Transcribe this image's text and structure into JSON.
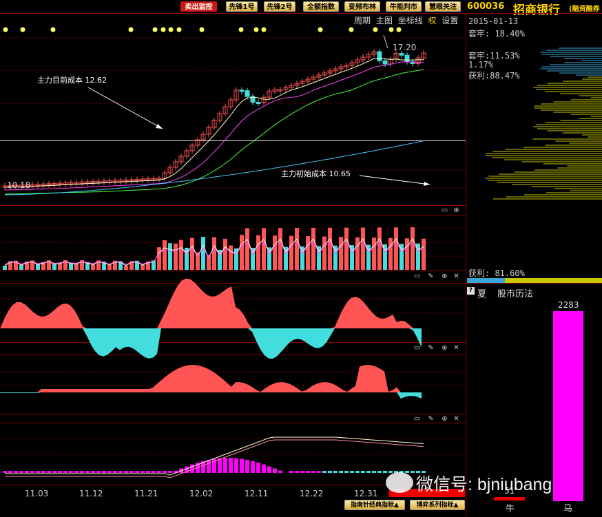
{
  "toolbar": {
    "buttons": [
      {
        "label": "卖出监控",
        "active": true
      },
      {
        "label": "先锋1号",
        "active": false
      },
      {
        "label": "先锋2号",
        "active": false
      },
      {
        "label": "全额指数",
        "active": false
      },
      {
        "label": "变频布林",
        "active": false
      },
      {
        "label": "牛能判市",
        "active": false
      },
      {
        "label": "慧眼关注",
        "active": false
      }
    ],
    "stock_code": "600036",
    "stock_name": "招商银行",
    "stock_tag": "(融资融券"
  },
  "main_chart": {
    "menu": [
      "周期",
      "主图",
      "坐标线",
      "权",
      "设置"
    ],
    "annotation_current": "主力目前成本 12.62",
    "annotation_initial": "主力初始成本 10.65",
    "low_label": "10.18",
    "high_label": "17.20"
  },
  "side_panel": {
    "date": "2015-01-13",
    "trapped": "套牢: 18.40%",
    "trapped2": "套牢:11.53%",
    "ratio": "1.17%",
    "profit": "获利:88.47%",
    "profit_bottom": "获利: 81.60%",
    "season_label": "夏",
    "market_calendar": "股市历法",
    "bar_value": "2283",
    "bull_value": "51",
    "bull_label": "牛",
    "horse_label": "马"
  },
  "x_axis": [
    "11.03",
    "11.12",
    "11.21",
    "12.02",
    "12.11",
    "12.22",
    "12.31"
  ],
  "footer": {
    "tab1": "指南针经典指标",
    "tab2": "博弈系列指标"
  },
  "watermark": "微信号: bjniubang",
  "colors": {
    "up": "#ff5555",
    "down": "#44dddd",
    "ma5": "#ffffcc",
    "ma10": "#ff44ff",
    "ma20": "#44ff44",
    "ma60": "#44ccff",
    "panel_line": "#880000",
    "bar_magenta": "#ff00ff"
  }
}
